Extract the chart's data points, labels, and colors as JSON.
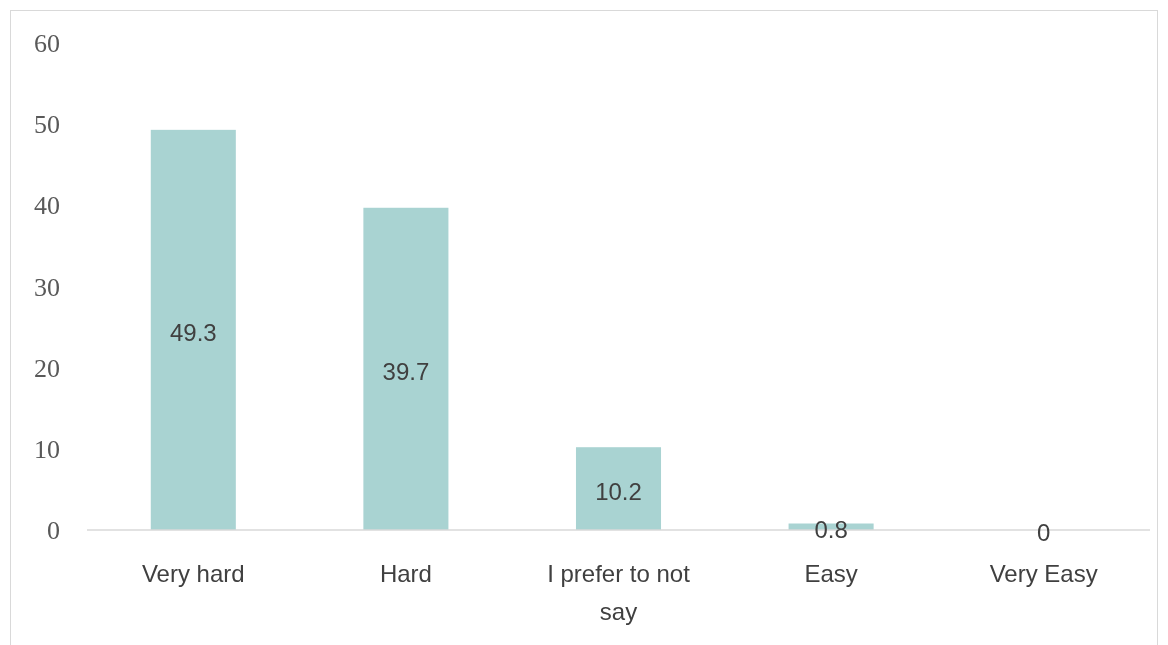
{
  "chart_data": {
    "type": "bar",
    "categories": [
      "Very hard",
      "Hard",
      "I prefer to not say",
      "Easy",
      "Very Easy"
    ],
    "values": [
      49.3,
      39.7,
      10.2,
      0.8,
      0
    ],
    "color": "#a9d3d2",
    "ylim": [
      0,
      60
    ],
    "yticks": [
      0,
      10,
      20,
      30,
      40,
      50,
      60
    ],
    "grid": false,
    "data_labels": true
  }
}
